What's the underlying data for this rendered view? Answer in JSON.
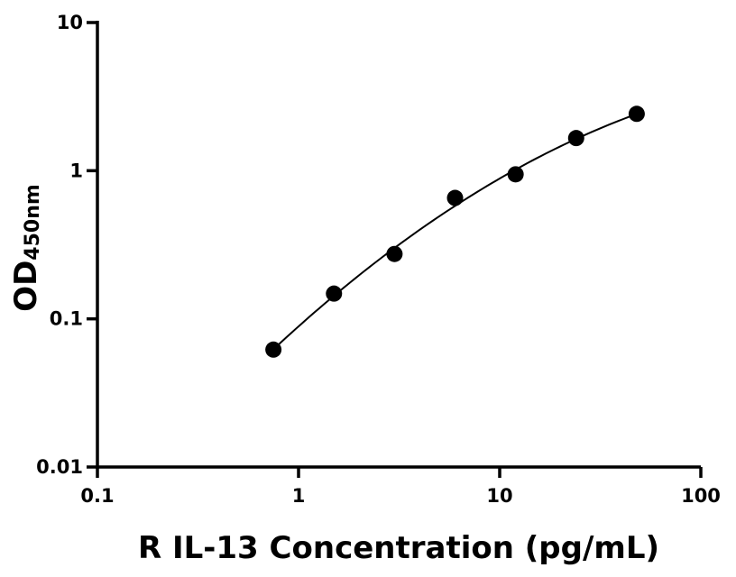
{
  "chart_data": {
    "type": "scatter",
    "xlabel": "R IL-13 Concentration (pg/mL)",
    "ylabel_main": "OD",
    "ylabel_sub": "450nm",
    "x_scale": "log",
    "y_scale": "log",
    "xlim": [
      0.1,
      100
    ],
    "ylim": [
      0.01,
      10
    ],
    "x_ticks": [
      {
        "value": 0.1,
        "label": "0.1"
      },
      {
        "value": 1,
        "label": "1"
      },
      {
        "value": 10,
        "label": "10"
      },
      {
        "value": 100,
        "label": "100"
      }
    ],
    "y_ticks": [
      {
        "value": 0.01,
        "label": "0.01"
      },
      {
        "value": 0.1,
        "label": "0.1"
      },
      {
        "value": 1,
        "label": "1"
      },
      {
        "value": 10,
        "label": "10"
      }
    ],
    "grid": false,
    "fit_curve": true,
    "series": [
      {
        "points": [
          {
            "x": 0.75,
            "y": 0.062
          },
          {
            "x": 1.5,
            "y": 0.148
          },
          {
            "x": 3,
            "y": 0.274
          },
          {
            "x": 6,
            "y": 0.655
          },
          {
            "x": 12,
            "y": 0.945
          },
          {
            "x": 24,
            "y": 1.66
          },
          {
            "x": 48,
            "y": 2.42
          }
        ],
        "color": "#000000"
      }
    ]
  }
}
